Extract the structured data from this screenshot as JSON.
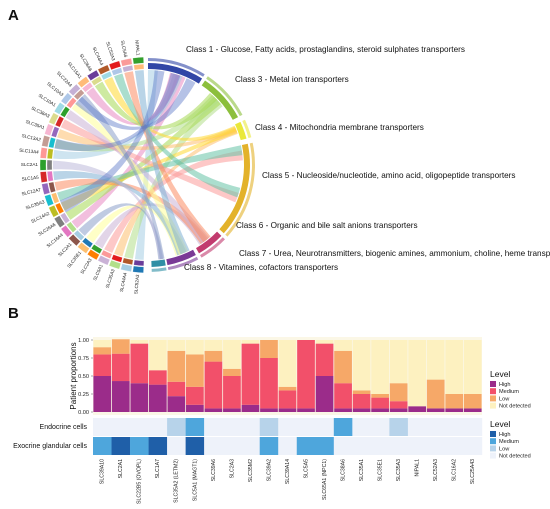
{
  "panel_a": {
    "letter": "A",
    "chord_classes": [
      {
        "label": "Class 1 - Glucose, Fatty acids, prostaglandins, steroid sulphates transporters",
        "color": "#3146a6"
      },
      {
        "label": "Class 3 - Metal ion transporters",
        "color": "#8cbf3c"
      },
      {
        "label": "Class 4 - Mitochondria membrane transporters",
        "color": "#e9e83a"
      },
      {
        "label": "Class 5 - Nucleoside/nucleotide, amino acid, oligopeptide transporters",
        "color": "#e3b22a"
      },
      {
        "label": "Class 6 - Organic and bile salt anions transporters",
        "color": "#c23b6f"
      },
      {
        "label": "Class 7 - Urea, Neurotransmitters, biogenic amines, ammonium, choline, heme transporters",
        "color": "#7a3a96"
      },
      {
        "label": "Class 8 - Vitamines, cofactors transporters",
        "color": "#2f8fa5"
      }
    ],
    "genes": [
      "SLC52A3",
      "SLC44A4",
      "SLC35A3",
      "SLC5A1",
      "SLC2A3",
      "SLC35E1",
      "SLC2A1",
      "SLC16A4",
      "SLC26A6",
      "SLC14A2",
      "SLC35A3",
      "SLC12A7",
      "SLC1A5",
      "SLC2A1",
      "SLC13A4",
      "SLC13A2",
      "SLC35A1",
      "SLC38A3",
      "SLC10A1",
      "SLC10A3",
      "SLC22A4",
      "SLC15A1",
      "SLC26A6",
      "SLC44A4",
      "SLC52A3",
      "SLC5A6",
      "NIPAL1"
    ]
  },
  "panel_b": {
    "letter": "B",
    "chart_data": {
      "type": "bar",
      "title": "",
      "ylabel": "Patient proportions",
      "ylim": [
        0,
        1
      ],
      "yticks": [
        "0.00",
        "0.25",
        "0.50",
        "0.75",
        "1.00"
      ],
      "categories": [
        "SLC39A10",
        "SLC2A1",
        "SLC22B5 (OVOPL)",
        "SLC1A7",
        "SLC35A2 (LETM2)",
        "SLC5A1 (MAGT1)",
        "SLC39A6",
        "SLC2A3",
        "SLC35M2",
        "SLC39A2",
        "SLC39A14",
        "SLC5A5",
        "SLC65A1 (NPC1)",
        "SLC38A6",
        "SLC35A1",
        "SLC35E1",
        "SLC35A3",
        "NIPAL1",
        "SLC52A3",
        "SLC16A2",
        "SLC25A43"
      ],
      "series": [
        {
          "name": "High",
          "color": "#9b2c8a",
          "values": [
            0.5,
            0.43,
            0.4,
            0.38,
            0.22,
            0.1,
            0.05,
            0.05,
            0.1,
            0.05,
            0.05,
            0.05,
            0.5,
            0.05,
            0.05,
            0.05,
            0.05,
            0.08,
            0.05,
            0.05,
            0.05
          ]
        },
        {
          "name": "Medium",
          "color": "#f2506a",
          "values": [
            0.3,
            0.38,
            0.55,
            0.2,
            0.2,
            0.25,
            0.65,
            0.45,
            0.85,
            0.7,
            0.25,
            0.95,
            0.45,
            0.35,
            0.2,
            0.15,
            0.1,
            0.0,
            0.0,
            0.0,
            0.0
          ]
        },
        {
          "name": "Low",
          "color": "#f6a868",
          "values": [
            0.1,
            0.2,
            0.0,
            0.0,
            0.43,
            0.45,
            0.15,
            0.1,
            0.0,
            0.25,
            0.05,
            0.0,
            0.0,
            0.45,
            0.05,
            0.05,
            0.25,
            0.0,
            0.4,
            0.2,
            0.2
          ]
        },
        {
          "name": "Not detected",
          "color": "#fdf1c0",
          "values": [
            0.1,
            0.0,
            0.05,
            0.42,
            0.15,
            0.2,
            0.15,
            0.4,
            0.05,
            0.0,
            0.65,
            0.0,
            0.05,
            0.15,
            0.7,
            0.75,
            0.6,
            0.92,
            0.55,
            0.75,
            0.75
          ]
        }
      ],
      "rows": [
        {
          "name": "Endocrine cells",
          "levels": [
            "",
            "",
            "",
            "",
            "Low",
            "Medium",
            "",
            "",
            "",
            "Low",
            "",
            "",
            "",
            "Medium",
            "",
            "",
            "Low",
            "",
            "",
            "",
            ""
          ]
        },
        {
          "name": "Exocrine glandular cells",
          "levels": [
            "Medium",
            "High",
            "Medium",
            "High",
            "",
            "High",
            "",
            "",
            "",
            "Medium",
            "",
            "Medium",
            "Medium",
            "",
            "",
            "",
            "",
            "",
            "",
            "",
            ""
          ]
        }
      ],
      "legend_patient": {
        "title": "Level",
        "items": [
          {
            "label": "High",
            "color": "#9b2c8a"
          },
          {
            "label": "Medium",
            "color": "#f2506a"
          },
          {
            "label": "Low",
            "color": "#f6a868"
          },
          {
            "label": "Not detected",
            "color": "#fdf1c0"
          }
        ]
      },
      "legend_cells": {
        "title": "Level",
        "items": [
          {
            "label": "High",
            "color": "#1f5fa8"
          },
          {
            "label": "Medium",
            "color": "#4ea6dc"
          },
          {
            "label": "Low",
            "color": "#b7d3ea"
          },
          {
            "label": "Not detected",
            "color": "#eef2fa"
          }
        ]
      },
      "grid": true,
      "legend_position": "right"
    }
  }
}
